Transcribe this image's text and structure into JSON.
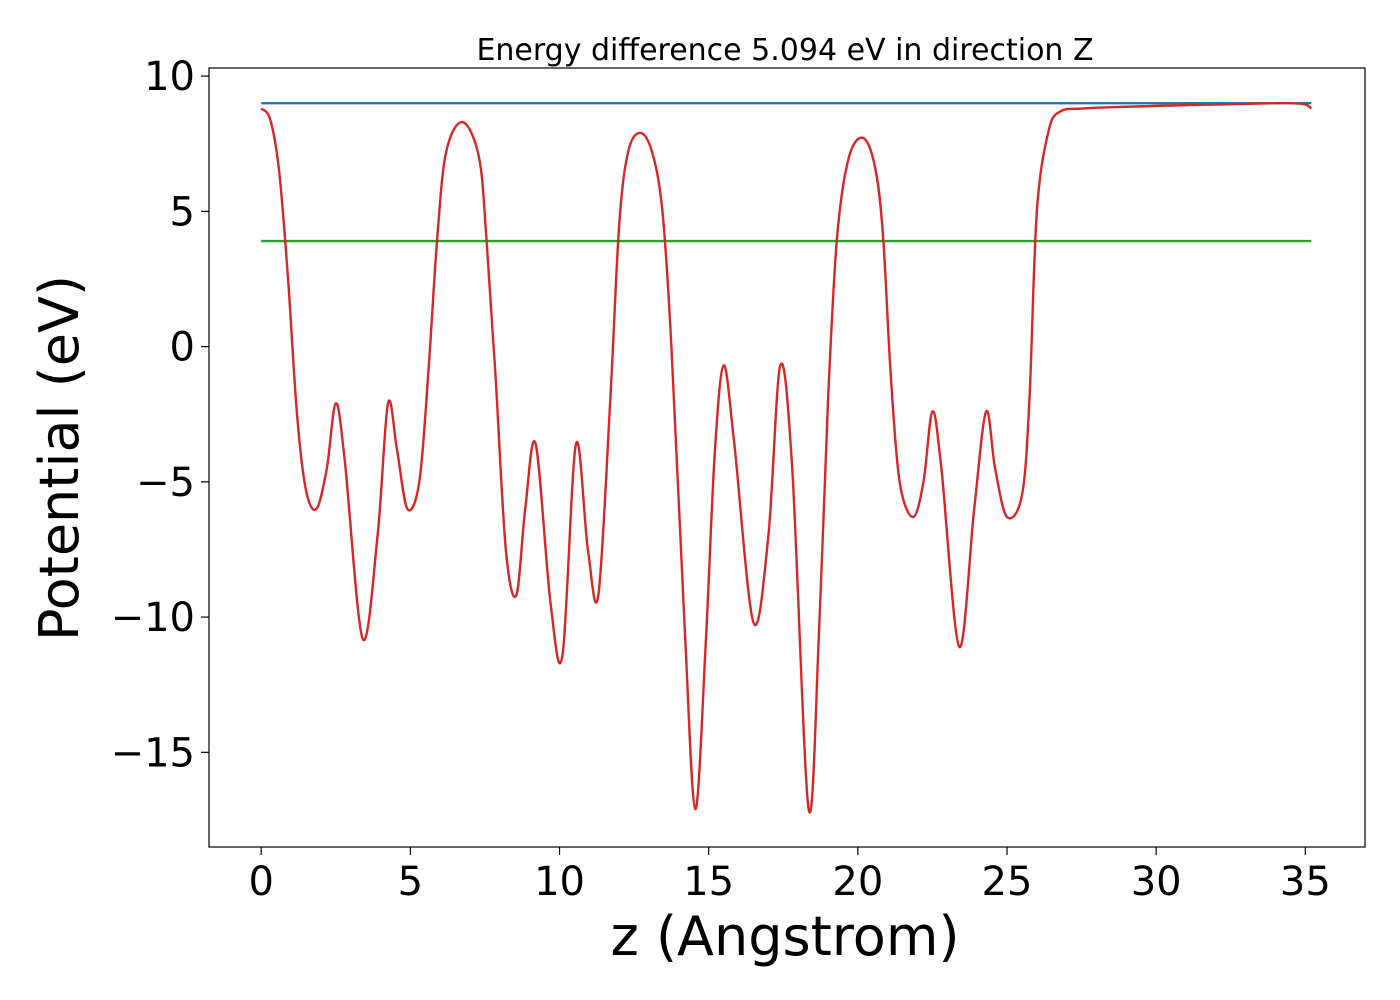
{
  "chart_data": {
    "type": "line",
    "title": "Energy difference 5.094 eV in direction Z",
    "xlabel": "z (Angstrom)",
    "ylabel": "Potential (eV)",
    "xlim": [
      -1.75,
      37.0
    ],
    "ylim": [
      -18.5,
      10.3
    ],
    "xticks": [
      0,
      5,
      10,
      15,
      20,
      25,
      30,
      35
    ],
    "xtick_labels": [
      "0",
      "5",
      "10",
      "15",
      "20",
      "25",
      "30",
      "35"
    ],
    "yticks": [
      -15,
      -10,
      -5,
      0,
      5,
      10
    ],
    "ytick_labels": [
      "−15",
      "−10",
      "−5",
      "0",
      "5",
      "10"
    ],
    "grid": false,
    "legend": false,
    "series": [
      {
        "color": "#1f77b4",
        "x": [
          0,
          35.2
        ],
        "y": [
          9.0,
          9.0
        ]
      },
      {
        "color": "#2ca02c",
        "x": [
          0,
          35.2
        ],
        "y": [
          3.9,
          3.9
        ]
      },
      {
        "color": "#d62728",
        "x": [
          0,
          0.3,
          0.6,
          0.9,
          1.2,
          1.5,
          1.85,
          2.2,
          2.5,
          2.8,
          3.4,
          3.9,
          4.25,
          4.55,
          4.9,
          5.3,
          5.6,
          5.9,
          6.2,
          6.75,
          7.3,
          7.55,
          7.85,
          8.2,
          8.55,
          8.85,
          9.2,
          9.7,
          10.1,
          10.55,
          10.95,
          11.3,
          11.7,
          12.0,
          12.3,
          12.7,
          13.1,
          13.45,
          13.75,
          14.2,
          14.55,
          14.9,
          15.2,
          15.5,
          15.85,
          16.5,
          17.0,
          17.4,
          17.8,
          18.35,
          18.7,
          19.0,
          19.3,
          19.7,
          20.2,
          20.6,
          20.85,
          21.1,
          21.4,
          21.85,
          22.2,
          22.5,
          22.8,
          23.4,
          23.9,
          24.3,
          24.6,
          25.0,
          25.5,
          25.75,
          26.0,
          26.4,
          26.8,
          27.5,
          28.5,
          30.0,
          32.0,
          34.0,
          34.5,
          35.0,
          35.2
        ],
        "y": [
          8.8,
          8.4,
          6.5,
          2.5,
          -2.5,
          -5.3,
          -6.0,
          -4.5,
          -2.1,
          -4.2,
          -10.8,
          -7.0,
          -2.1,
          -3.8,
          -6.0,
          -5.0,
          -1.0,
          4.0,
          7.2,
          8.3,
          7.0,
          4.0,
          -1.0,
          -7.5,
          -9.2,
          -6.0,
          -3.6,
          -9.5,
          -11.4,
          -3.6,
          -7.5,
          -9.2,
          -2.0,
          4.5,
          7.2,
          7.9,
          7.2,
          5.0,
          0.0,
          -10.5,
          -17.1,
          -11.0,
          -4.0,
          -0.7,
          -3.5,
          -10.2,
          -7.0,
          -0.7,
          -4.5,
          -17.1,
          -10.5,
          -2.0,
          4.0,
          7.0,
          7.7,
          6.5,
          4.0,
          -1.0,
          -5.0,
          -6.3,
          -5.0,
          -2.4,
          -4.5,
          -11.1,
          -6.0,
          -2.4,
          -4.5,
          -6.3,
          -5.5,
          -2.0,
          5.0,
          8.0,
          8.7,
          8.8,
          8.85,
          8.9,
          8.95,
          9.0,
          9.0,
          8.95,
          8.8
        ]
      }
    ]
  }
}
